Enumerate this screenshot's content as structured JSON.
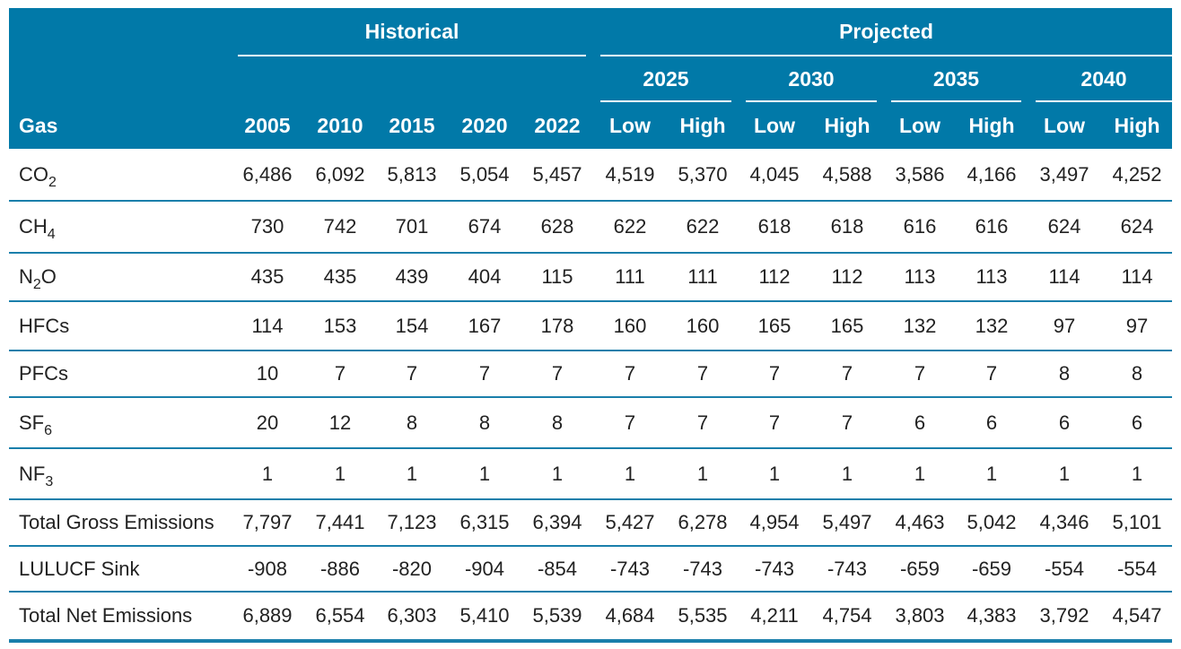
{
  "header": {
    "historical_label": "Historical",
    "projected_label": "Projected",
    "gas_label": "Gas",
    "historical_years": [
      "2005",
      "2010",
      "2015",
      "2020",
      "2022"
    ],
    "projected_years": [
      "2025",
      "2030",
      "2035",
      "2040"
    ],
    "low_label": "Low",
    "high_label": "High"
  },
  "rows": [
    {
      "gas": "CO",
      "sub": "2",
      "values": [
        "6,486",
        "6,092",
        "5,813",
        "5,054",
        "5,457",
        "4,519",
        "5,370",
        "4,045",
        "4,588",
        "3,586",
        "4,166",
        "3,497",
        "4,252"
      ]
    },
    {
      "gas": "CH",
      "sub": "4",
      "values": [
        "730",
        "742",
        "701",
        "674",
        "628",
        "622",
        "622",
        "618",
        "618",
        "616",
        "616",
        "624",
        "624"
      ]
    },
    {
      "gas": "N",
      "sub": "2",
      "suffix": "O",
      "values": [
        "435",
        "435",
        "439",
        "404",
        "115",
        "111",
        "111",
        "112",
        "112",
        "113",
        "113",
        "114",
        "114"
      ]
    },
    {
      "gas": "HFCs",
      "values": [
        "114",
        "153",
        "154",
        "167",
        "178",
        "160",
        "160",
        "165",
        "165",
        "132",
        "132",
        "97",
        "97"
      ]
    },
    {
      "gas": "PFCs",
      "values": [
        "10",
        "7",
        "7",
        "7",
        "7",
        "7",
        "7",
        "7",
        "7",
        "7",
        "7",
        "8",
        "8"
      ]
    },
    {
      "gas": "SF",
      "sub": "6",
      "values": [
        "20",
        "12",
        "8",
        "8",
        "8",
        "7",
        "7",
        "7",
        "7",
        "6",
        "6",
        "6",
        "6"
      ]
    },
    {
      "gas": "NF",
      "sub": "3",
      "values": [
        "1",
        "1",
        "1",
        "1",
        "1",
        "1",
        "1",
        "1",
        "1",
        "1",
        "1",
        "1",
        "1"
      ]
    },
    {
      "gas": "Total Gross Emissions",
      "values": [
        "7,797",
        "7,441",
        "7,123",
        "6,315",
        "6,394",
        "5,427",
        "6,278",
        "4,954",
        "5,497",
        "4,463",
        "5,042",
        "4,346",
        "5,101"
      ]
    },
    {
      "gas": "LULUCF Sink",
      "values": [
        "-908",
        "-886",
        "-820",
        "-904",
        "-854",
        "-743",
        "-743",
        "-743",
        "-743",
        "-659",
        "-659",
        "-554",
        "-554"
      ]
    },
    {
      "gas": "Total Net Emissions",
      "values": [
        "6,889",
        "6,554",
        "6,303",
        "5,410",
        "5,539",
        "4,684",
        "5,535",
        "4,211",
        "4,754",
        "3,803",
        "4,383",
        "3,792",
        "4,547"
      ]
    }
  ]
}
